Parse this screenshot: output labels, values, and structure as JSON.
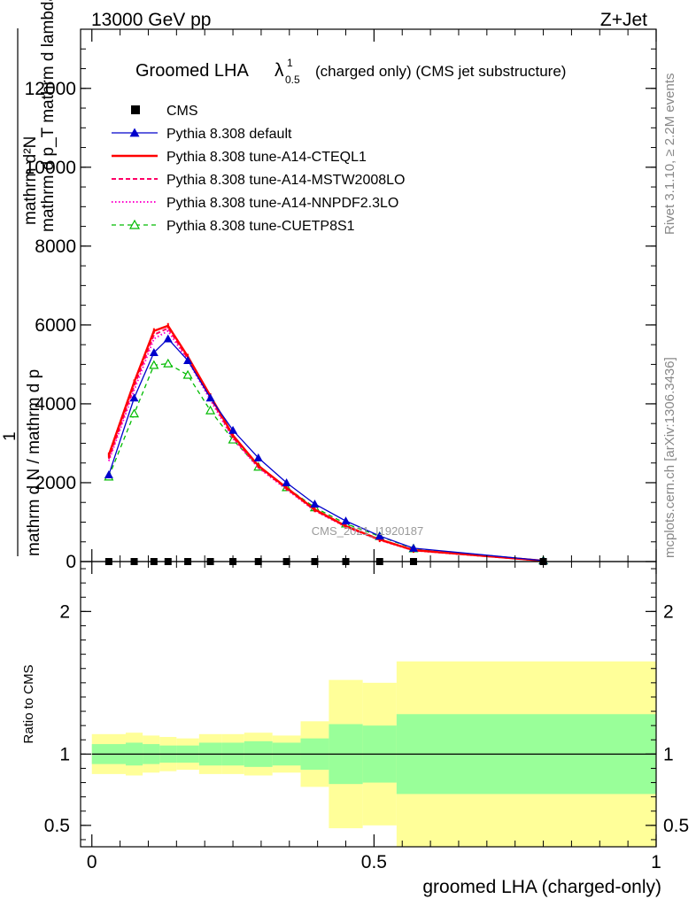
{
  "header": {
    "left": "13000 GeV pp",
    "right": "Z+Jet"
  },
  "side_text": {
    "rivet": "Rivet 3.1.10, ≥ 2.2M events",
    "mcplots": "mcplots.cern.ch [arXiv:1306.3436]"
  },
  "watermark": "CMS_2021_I1920187",
  "colors": {
    "band_outer": "#ffff99",
    "band_inner": "#99ff99",
    "cms": "#000000",
    "default": "#0000cc",
    "cteql1": "#ff0000",
    "mstw": "#ff0066",
    "nnpdf": "#ff00cc",
    "cuetp8s1": "#00bb00"
  },
  "chart_data": [
    {
      "type": "line",
      "title": "Groomed LHA",
      "title_symbol": "λ",
      "title_sup": "1",
      "title_sub": "0.5",
      "title_suffix": "(charged only) (CMS jet substructure)",
      "ylabel_top": "mathrm d²N",
      "ylabel_bottom": "mathrm d N / mathrm d p_T mathrm d lambda",
      "ylabel_prefix": "1",
      "ylabel_num": "mathrm d²N",
      "ylabel_den": "mathrm d p_T mathrm d lambda",
      "ylabel_one": "1",
      "ylabel_den2": "mathrm d N / mathrm d p",
      "ylim": [
        0,
        13500
      ],
      "xlim": [
        -0.02,
        1.0
      ],
      "yticks": [
        0,
        2000,
        4000,
        6000,
        8000,
        10000,
        12000
      ],
      "ytick_labels": [
        "0",
        "2000",
        "4000",
        "6000",
        "8000",
        "10000",
        "12000"
      ],
      "x": [
        0.03,
        0.075,
        0.11,
        0.135,
        0.17,
        0.21,
        0.25,
        0.295,
        0.345,
        0.395,
        0.45,
        0.51,
        0.57,
        0.8
      ],
      "series": [
        {
          "name": "CMS",
          "key": "cms",
          "style": "marker-square",
          "values": [
            0,
            0,
            0,
            0,
            0,
            0,
            0,
            0,
            0,
            0,
            0,
            0,
            0,
            0
          ]
        },
        {
          "name": "Pythia 8.308 default",
          "key": "default",
          "style": "solid-triangle",
          "values": [
            2200,
            4150,
            5300,
            5650,
            5100,
            4150,
            3330,
            2630,
            2000,
            1460,
            1030,
            650,
            340,
            25
          ]
        },
        {
          "name": "Pythia 8.308 tune-A14-CTEQL1",
          "key": "cteql1",
          "style": "solid-thick",
          "values": [
            2700,
            4550,
            5850,
            5980,
            5200,
            4200,
            3200,
            2430,
            1870,
            1320,
            900,
            560,
            290,
            20
          ]
        },
        {
          "name": "Pythia 8.308 tune-A14-MSTW2008LO",
          "key": "mstw",
          "style": "dashed",
          "values": [
            2600,
            4450,
            5750,
            5920,
            5150,
            4150,
            3150,
            2400,
            1850,
            1300,
            890,
            550,
            285,
            20
          ]
        },
        {
          "name": "Pythia 8.308 tune-A14-NNPDF2.3LO",
          "key": "nnpdf",
          "style": "dotted",
          "values": [
            2550,
            4350,
            5650,
            5850,
            5100,
            4100,
            3120,
            2380,
            1830,
            1290,
            880,
            545,
            280,
            20
          ]
        },
        {
          "name": "Pythia 8.308 tune-CUETP8S1",
          "key": "cuetp8s1",
          "style": "dashed-open-triangle",
          "values": [
            2150,
            3750,
            4980,
            5020,
            4730,
            3830,
            3090,
            2400,
            1880,
            1370,
            960,
            640,
            330,
            25
          ]
        }
      ]
    },
    {
      "type": "area",
      "ylabel": "Ratio to CMS",
      "xlabel": "groomed LHA (charged-only)",
      "ylim": [
        0.35,
        2.35
      ],
      "xlim": [
        -0.02,
        1.0
      ],
      "yticks": [
        0.5,
        1,
        2
      ],
      "ytick_labels": [
        "0.5",
        "1",
        "2"
      ],
      "xticks": [
        0,
        0.5,
        1
      ],
      "xtick_labels": [
        "0",
        "0.5",
        "1"
      ],
      "bins": [
        {
          "lo": 0.0,
          "hi": 0.06,
          "inner": [
            0.93,
            1.07
          ],
          "outer": [
            0.86,
            1.14
          ]
        },
        {
          "lo": 0.06,
          "hi": 0.09,
          "inner": [
            0.92,
            1.08
          ],
          "outer": [
            0.85,
            1.15
          ]
        },
        {
          "lo": 0.09,
          "hi": 0.12,
          "inner": [
            0.93,
            1.07
          ],
          "outer": [
            0.87,
            1.13
          ]
        },
        {
          "lo": 0.12,
          "hi": 0.15,
          "inner": [
            0.94,
            1.06
          ],
          "outer": [
            0.88,
            1.12
          ]
        },
        {
          "lo": 0.15,
          "hi": 0.19,
          "inner": [
            0.94,
            1.06
          ],
          "outer": [
            0.89,
            1.11
          ]
        },
        {
          "lo": 0.19,
          "hi": 0.23,
          "inner": [
            0.92,
            1.08
          ],
          "outer": [
            0.86,
            1.14
          ]
        },
        {
          "lo": 0.23,
          "hi": 0.27,
          "inner": [
            0.92,
            1.08
          ],
          "outer": [
            0.86,
            1.14
          ]
        },
        {
          "lo": 0.27,
          "hi": 0.32,
          "inner": [
            0.91,
            1.09
          ],
          "outer": [
            0.85,
            1.15
          ]
        },
        {
          "lo": 0.32,
          "hi": 0.37,
          "inner": [
            0.92,
            1.08
          ],
          "outer": [
            0.87,
            1.13
          ]
        },
        {
          "lo": 0.37,
          "hi": 0.42,
          "inner": [
            0.89,
            1.11
          ],
          "outer": [
            0.77,
            1.23
          ]
        },
        {
          "lo": 0.42,
          "hi": 0.48,
          "inner": [
            0.79,
            1.21
          ],
          "outer": [
            0.48,
            1.52
          ]
        },
        {
          "lo": 0.48,
          "hi": 0.54,
          "inner": [
            0.8,
            1.2
          ],
          "outer": [
            0.5,
            1.5
          ]
        },
        {
          "lo": 0.54,
          "hi": 1.0,
          "inner": [
            0.72,
            1.28
          ],
          "outer": [
            0.35,
            1.65
          ]
        }
      ]
    }
  ]
}
